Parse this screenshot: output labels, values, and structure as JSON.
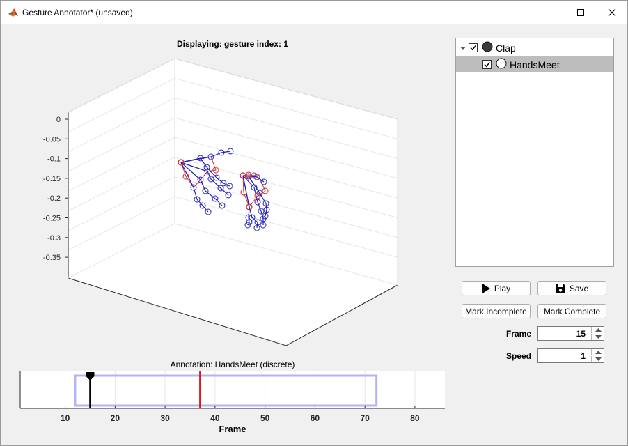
{
  "window": {
    "title": "Gesture Annotator* (unsaved)",
    "controls": [
      "minimize-icon",
      "maximize-icon",
      "close-icon"
    ]
  },
  "plot": {
    "title": "Displaying: gesture index: 1",
    "z_ticks": [
      "0",
      "-0.05",
      "-0.1",
      "-0.15",
      "-0.2",
      "-0.25",
      "-0.3",
      "-0.35"
    ]
  },
  "tree": {
    "root": {
      "label": "Clap",
      "checked": true,
      "expanded": true,
      "icon": "filled-circle-icon"
    },
    "children": [
      {
        "label": "HandsMeet",
        "checked": true,
        "selected": true,
        "icon": "open-circle-icon"
      }
    ]
  },
  "buttons": {
    "play": "Play",
    "save": "Save",
    "mark_incomplete": "Mark Incomplete",
    "mark_complete": "Mark Complete"
  },
  "fields": {
    "frame_label": "Frame",
    "frame_value": "15",
    "speed_label": "Speed",
    "speed_value": "1"
  },
  "annotation": {
    "title": "Annotation: HandsMeet (discrete)",
    "xlabel": "Frame",
    "x_ticks": [
      "10",
      "20",
      "30",
      "40",
      "50",
      "60",
      "70",
      "80"
    ],
    "x_range": [
      1,
      86
    ],
    "current_frame": 15,
    "marker_frame": 37,
    "range_start": 12,
    "range_end": 72.3
  },
  "colors": {
    "skeleton_joint": "#d62728",
    "finger_joint": "#1f1fbf",
    "marker": "#e0141e",
    "range": "#b4b4f0"
  }
}
